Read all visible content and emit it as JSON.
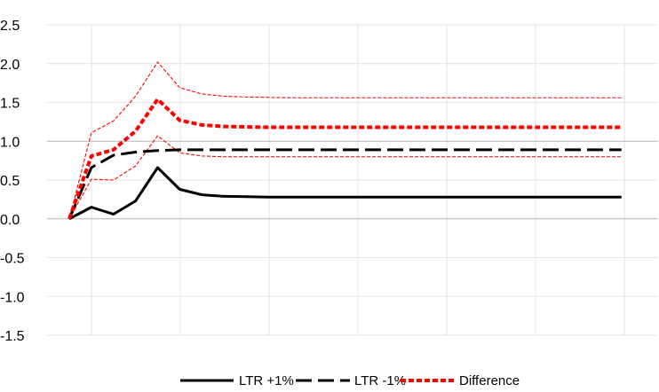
{
  "chart_data": {
    "type": "line",
    "x": [
      0,
      1,
      2,
      3,
      4,
      5,
      6,
      7,
      8,
      9,
      10,
      11,
      12,
      13,
      14,
      15,
      16,
      17,
      18,
      19,
      20,
      21,
      22,
      23,
      24,
      25
    ],
    "ylim": [
      -1.5,
      2.5
    ],
    "yticks": [
      2.5,
      2.0,
      1.5,
      1.0,
      0.5,
      0.0,
      -0.5,
      -1.0,
      -1.5
    ],
    "ytick_labels": [
      "2.5",
      "2.0",
      "1.5",
      "1.0",
      "0.5",
      "0.0",
      "-0.5",
      "-1.0",
      "-1.5"
    ],
    "grid": true,
    "legend_position": "bottom",
    "series": [
      {
        "name": "LTR +1%",
        "color": "#000000",
        "style": "solid",
        "values": [
          0,
          0.15,
          0.06,
          0.23,
          0.66,
          0.38,
          0.31,
          0.29,
          0.285,
          0.28,
          0.28,
          0.28,
          0.28,
          0.28,
          0.28,
          0.28,
          0.28,
          0.28,
          0.28,
          0.28,
          0.28,
          0.28,
          0.28,
          0.28,
          0.28,
          0.28
        ]
      },
      {
        "name": "LTR -1%",
        "color": "#000000",
        "style": "dashed",
        "values": [
          0,
          0.66,
          0.82,
          0.86,
          0.88,
          0.89,
          0.89,
          0.89,
          0.89,
          0.89,
          0.89,
          0.89,
          0.89,
          0.89,
          0.89,
          0.89,
          0.89,
          0.89,
          0.89,
          0.89,
          0.89,
          0.89,
          0.89,
          0.89,
          0.89,
          0.89
        ]
      },
      {
        "name": "Difference",
        "color": "#ff0000",
        "style": "dotted",
        "values": [
          0,
          0.81,
          0.89,
          1.13,
          1.54,
          1.27,
          1.21,
          1.19,
          1.185,
          1.18,
          1.18,
          1.18,
          1.18,
          1.18,
          1.18,
          1.18,
          1.18,
          1.18,
          1.18,
          1.18,
          1.18,
          1.18,
          1.18,
          1.18,
          1.18,
          1.18
        ]
      },
      {
        "name": "",
        "color": "#ff0000",
        "style": "thin-dashed",
        "legend": false,
        "values": [
          0,
          1.11,
          1.26,
          1.58,
          2.02,
          1.69,
          1.61,
          1.58,
          1.57,
          1.565,
          1.56,
          1.56,
          1.56,
          1.56,
          1.56,
          1.56,
          1.56,
          1.56,
          1.56,
          1.56,
          1.56,
          1.56,
          1.56,
          1.56,
          1.56,
          1.56
        ]
      },
      {
        "name": "",
        "color": "#ff0000",
        "style": "thin-dashed",
        "legend": false,
        "values": [
          0,
          0.51,
          0.5,
          0.68,
          1.07,
          0.85,
          0.81,
          0.8,
          0.8,
          0.8,
          0.8,
          0.8,
          0.8,
          0.8,
          0.8,
          0.8,
          0.8,
          0.8,
          0.8,
          0.8,
          0.8,
          0.8,
          0.8,
          0.8,
          0.8,
          0.8
        ]
      }
    ]
  }
}
